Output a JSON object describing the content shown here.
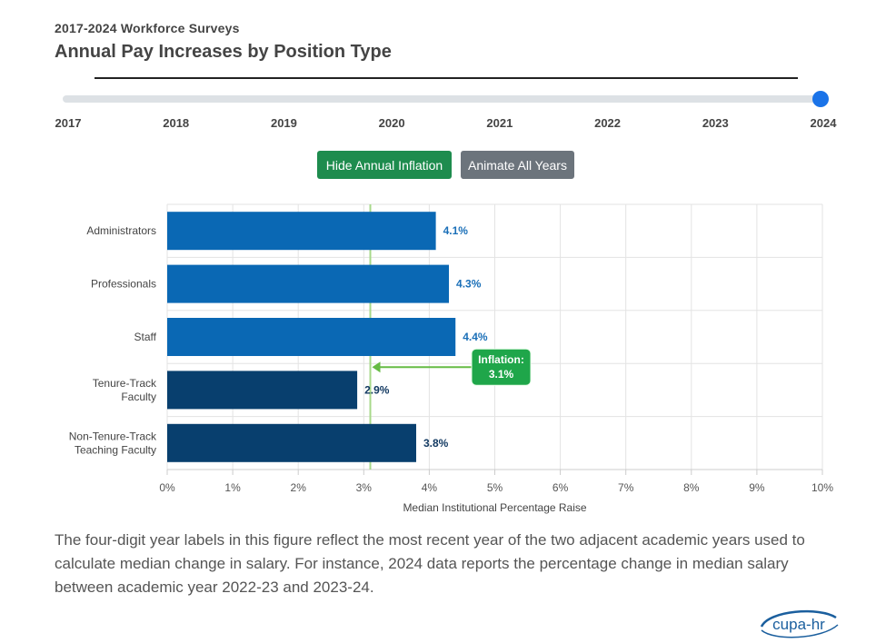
{
  "header": {
    "subtitle": "2017-2024 Workforce Surveys",
    "title": "Annual Pay Increases by Position Type"
  },
  "slider": {
    "years": [
      "2017",
      "2018",
      "2019",
      "2020",
      "2021",
      "2022",
      "2023",
      "2024"
    ],
    "selected_year": "2024"
  },
  "buttons": {
    "inflation_label": "Hide Annual Inflation",
    "animate_label": "Animate All Years"
  },
  "chart_data": {
    "type": "bar",
    "orientation": "horizontal",
    "categories": [
      [
        "Administrators"
      ],
      [
        "Professionals"
      ],
      [
        "Staff"
      ],
      [
        "Tenure-Track",
        "Faculty"
      ],
      [
        "Non-Tenure-Track",
        "Teaching Faculty"
      ]
    ],
    "values": [
      4.1,
      4.3,
      4.4,
      2.9,
      3.8
    ],
    "data_labels": [
      "4.1%",
      "4.3%",
      "4.4%",
      "2.9%",
      "3.8%"
    ],
    "xlabel": "Median Institutional Percentage Raise",
    "xlim": [
      0,
      10
    ],
    "x_ticks": [
      "0%",
      "1%",
      "2%",
      "3%",
      "4%",
      "5%",
      "6%",
      "7%",
      "8%",
      "9%",
      "10%"
    ],
    "grid": true,
    "inflation": {
      "value": 3.1,
      "label_line1": "Inflation:",
      "label_line2": "3.1%"
    },
    "colors": {
      "staff_bars": "#0a68b4",
      "faculty_bars": "#083f6e",
      "staff_labels": "#1a6fb8",
      "faculty_labels": "#133a62",
      "inflation_line": "#a8d98a",
      "inflation_arrow": "#66bb44",
      "inflation_badge": "#1fa64a"
    }
  },
  "footnote": "The four-digit year labels in this figure reflect the most recent year of the two adjacent academic years used to calculate median change in salary. For instance, 2024 data reports the percentage change in median salary between academic year 2022-23 and 2023-24.",
  "logo": {
    "text": "cupa-hr",
    "color": "#1b5f9e"
  }
}
